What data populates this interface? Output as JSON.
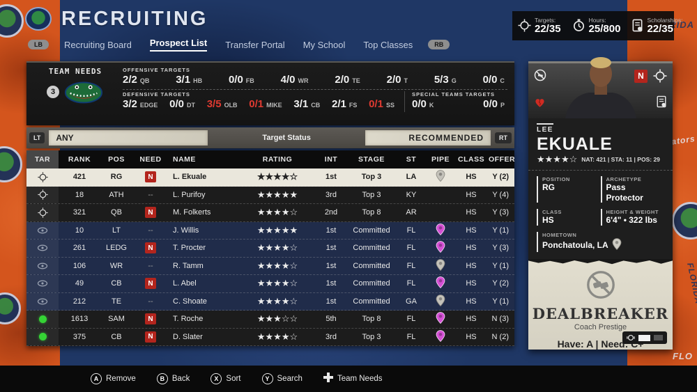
{
  "colors": {
    "accent_orange": "#d4551d",
    "bg_blue": "#1f3765",
    "alert_red": "#e03a31",
    "badge_red": "#b3251d",
    "green": "#35d435",
    "pink": "#d44fd4",
    "gray_pin": "#c4c2ba",
    "navy_row": "#202c4a",
    "selected_row": "#eae7dc"
  },
  "background": {
    "words": [
      "RIDA",
      "FLO",
      "Gators",
      "FLORIDA"
    ]
  },
  "header": {
    "title": "RECRUITING",
    "left_bumper": "LB",
    "right_bumper": "RB",
    "tabs": [
      {
        "label": "Recruiting Board",
        "active": false
      },
      {
        "label": "Prospect List",
        "active": true
      },
      {
        "label": "Transfer Portal",
        "active": false
      },
      {
        "label": "My School",
        "active": false
      },
      {
        "label": "Top Classes",
        "active": false
      }
    ]
  },
  "stats_bar": {
    "items": [
      {
        "icon": "targets-icon",
        "label": "Targets:",
        "value": "22/35"
      },
      {
        "icon": "hours-icon",
        "label": "Hours:",
        "value": "25/800"
      },
      {
        "icon": "scholarships-icon",
        "label": "Scholarships:",
        "value": "22/35"
      }
    ]
  },
  "team_needs": {
    "title": "TEAM NEEDS",
    "badge": "3",
    "offensive_label": "OFFENSIVE TARGETS",
    "defensive_label": "DEFENSIVE TARGETS",
    "special_label": "SPECIAL TEAMS TARGETS",
    "offensive": [
      {
        "value": "2/2",
        "pos": "QB"
      },
      {
        "value": "3/1",
        "pos": "HB"
      },
      {
        "value": "0/0",
        "pos": "FB"
      },
      {
        "value": "4/0",
        "pos": "WR"
      },
      {
        "value": "2/0",
        "pos": "TE"
      },
      {
        "value": "2/0",
        "pos": "T"
      },
      {
        "value": "5/3",
        "pos": "G"
      },
      {
        "value": "0/0",
        "pos": "C"
      }
    ],
    "defensive": [
      {
        "value": "3/2",
        "pos": "EDGE"
      },
      {
        "value": "0/0",
        "pos": "DT"
      },
      {
        "value": "3/5",
        "pos": "OLB",
        "alert": true
      },
      {
        "value": "0/1",
        "pos": "MIKE",
        "alert": true
      },
      {
        "value": "3/1",
        "pos": "CB"
      },
      {
        "value": "2/1",
        "pos": "FS"
      },
      {
        "value": "0/1",
        "pos": "SS",
        "alert": true
      }
    ],
    "special": [
      {
        "value": "0/0",
        "pos": "K"
      },
      {
        "value": "0/0",
        "pos": "P"
      }
    ]
  },
  "filter_bar": {
    "left_bumper": "LT",
    "right_bumper": "RT",
    "left_filter": "ANY",
    "center_label": "Target Status",
    "right_filter": "RECOMMENDED"
  },
  "table": {
    "columns": [
      "TAR",
      "RANK",
      "POS",
      "NEED",
      "NAME",
      "RATING",
      "INT",
      "STAGE",
      "ST",
      "PIPE",
      "CLASS",
      "OFFER"
    ],
    "rows": [
      {
        "tar": "target",
        "rank": "421",
        "pos": "RG",
        "need": "N",
        "name": "L. Ekuale",
        "stars": 4,
        "int": "1st",
        "stage": "Top 3",
        "st": "LA",
        "pipe": "gray",
        "class": "HS",
        "offer": "Y (2)",
        "state": "selected"
      },
      {
        "tar": "target",
        "rank": "18",
        "pos": "ATH",
        "need": "--",
        "name": "L. Purifoy",
        "stars": 5,
        "int": "3rd",
        "stage": "Top 3",
        "st": "KY",
        "pipe": "none",
        "class": "HS",
        "offer": "Y (4)",
        "state": "dark"
      },
      {
        "tar": "target",
        "rank": "321",
        "pos": "QB",
        "need": "N",
        "name": "M. Folkerts",
        "stars": 4,
        "int": "2nd",
        "stage": "Top 8",
        "st": "AR",
        "pipe": "none",
        "class": "HS",
        "offer": "Y (3)",
        "state": "dark"
      },
      {
        "tar": "committed",
        "rank": "10",
        "pos": "LT",
        "need": "--",
        "name": "J. Willis",
        "stars": 5,
        "int": "1st",
        "stage": "Committed",
        "st": "FL",
        "pipe": "pink",
        "class": "HS",
        "offer": "Y (1)",
        "state": "committed"
      },
      {
        "tar": "committed",
        "rank": "261",
        "pos": "LEDG",
        "need": "N",
        "name": "T. Procter",
        "stars": 4,
        "int": "1st",
        "stage": "Committed",
        "st": "FL",
        "pipe": "pink",
        "class": "HS",
        "offer": "Y (3)",
        "state": "committed"
      },
      {
        "tar": "committed",
        "rank": "106",
        "pos": "WR",
        "need": "--",
        "name": "R. Tamm",
        "stars": 4,
        "int": "1st",
        "stage": "Committed",
        "st": "FL",
        "pipe": "gray",
        "class": "HS",
        "offer": "Y (1)",
        "state": "committed"
      },
      {
        "tar": "committed",
        "rank": "49",
        "pos": "CB",
        "need": "N",
        "name": "L. Abel",
        "stars": 4,
        "int": "1st",
        "stage": "Committed",
        "st": "FL",
        "pipe": "pink",
        "class": "HS",
        "offer": "Y (2)",
        "state": "committed"
      },
      {
        "tar": "committed",
        "rank": "212",
        "pos": "TE",
        "need": "--",
        "name": "C. Shoate",
        "stars": 4,
        "int": "1st",
        "stage": "Committed",
        "st": "GA",
        "pipe": "gray",
        "class": "HS",
        "offer": "Y (1)",
        "state": "committed"
      },
      {
        "tar": "active",
        "rank": "1613",
        "pos": "SAM",
        "need": "N",
        "name": "T. Roche",
        "stars": 3,
        "int": "5th",
        "stage": "Top 8",
        "st": "FL",
        "pipe": "pink",
        "class": "HS",
        "offer": "N (3)",
        "state": "dark"
      },
      {
        "tar": "active",
        "rank": "375",
        "pos": "CB",
        "need": "N",
        "name": "D. Slater",
        "stars": 4,
        "int": "3rd",
        "stage": "Top 3",
        "st": "FL",
        "pipe": "pink",
        "class": "HS",
        "offer": "N (2)",
        "state": "dark"
      }
    ]
  },
  "player_card": {
    "first_name": "LEE",
    "last_name": "EKUALE",
    "stars": 4,
    "stat_line": "NAT: 421 | STA: 11 | POS: 29",
    "need_badge": "N",
    "details": [
      {
        "label": "POSITION",
        "value": "RG"
      },
      {
        "label": "ARCHETYPE",
        "value": "Pass Protector"
      },
      {
        "label": "CLASS",
        "value": "HS"
      },
      {
        "label": "HEIGHT & WEIGHT",
        "value": "6'4\" • 322 lbs"
      },
      {
        "label": "HOMETOWN",
        "value": "Ponchatoula, LA",
        "icon": "pin-icon",
        "full": true
      }
    ],
    "dealbreaker": {
      "title": "DEALBREAKER",
      "subtitle": "Coach Prestige",
      "requirement": "Have: A | Need: C+"
    }
  },
  "footer": {
    "buttons": [
      {
        "key": "A",
        "label": "Remove"
      },
      {
        "key": "B",
        "label": "Back"
      },
      {
        "key": "X",
        "label": "Sort"
      },
      {
        "key": "Y",
        "label": "Search"
      },
      {
        "key": "dpad",
        "label": "Team Needs"
      }
    ]
  }
}
